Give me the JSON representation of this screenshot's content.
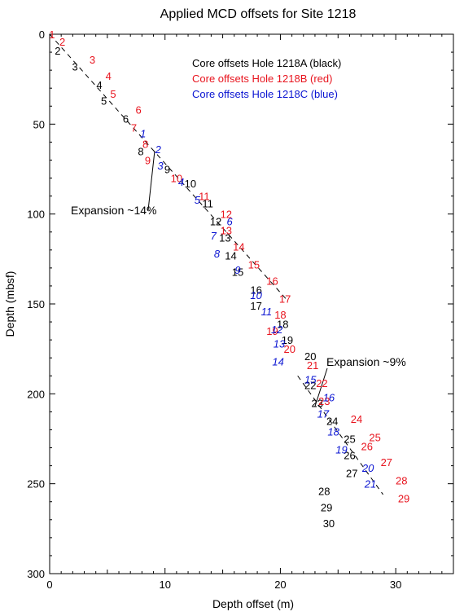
{
  "chart_data": {
    "type": "scatter",
    "title": "Applied MCD offsets for Site 1218",
    "xlabel": "Depth offset (m)",
    "ylabel": "Depth (mbsf)",
    "xlim": [
      0,
      35
    ],
    "ylim": [
      300,
      0
    ],
    "x_ticks": [
      0,
      10,
      20,
      30
    ],
    "y_ticks": [
      0,
      50,
      100,
      150,
      200,
      250,
      300
    ],
    "grid": false,
    "legend_position": "top-right",
    "legend": [
      {
        "text": "Core offsets Hole 1218A (black)",
        "color": "#000000"
      },
      {
        "text": "Core offsets Hole 1218B (red)",
        "color": "#e8141e"
      },
      {
        "text": "Core offsets Hole 1218C (blue)",
        "color": "#0a14d2"
      }
    ],
    "series": [
      {
        "hole": "1218A",
        "color": "#000000",
        "italic": false,
        "points": [
          {
            "label": "2",
            "x": 0.7,
            "y": 9
          },
          {
            "label": "3",
            "x": 2.2,
            "y": 18
          },
          {
            "label": "4",
            "x": 4.3,
            "y": 28
          },
          {
            "label": "5",
            "x": 4.7,
            "y": 37
          },
          {
            "label": "6",
            "x": 6.6,
            "y": 47
          },
          {
            "label": "8",
            "x": 7.9,
            "y": 65
          },
          {
            "label": "9",
            "x": 10.2,
            "y": 75
          },
          {
            "label": "10",
            "x": 12.2,
            "y": 83
          },
          {
            "label": "11",
            "x": 13.7,
            "y": 94
          },
          {
            "label": "12",
            "x": 14.4,
            "y": 104
          },
          {
            "label": "13",
            "x": 15.2,
            "y": 113
          },
          {
            "label": "14",
            "x": 15.7,
            "y": 123
          },
          {
            "label": "15",
            "x": 16.3,
            "y": 132
          },
          {
            "label": "16",
            "x": 17.9,
            "y": 142
          },
          {
            "label": "17",
            "x": 17.9,
            "y": 151
          },
          {
            "label": "18",
            "x": 20.2,
            "y": 161
          },
          {
            "label": "19",
            "x": 20.6,
            "y": 170
          },
          {
            "label": "20",
            "x": 22.6,
            "y": 179
          },
          {
            "label": "22",
            "x": 22.6,
            "y": 195
          },
          {
            "label": "23",
            "x": 23.2,
            "y": 205
          },
          {
            "label": "24",
            "x": 24.5,
            "y": 215
          },
          {
            "label": "25",
            "x": 26.0,
            "y": 225
          },
          {
            "label": "26",
            "x": 26.0,
            "y": 234
          },
          {
            "label": "27",
            "x": 26.2,
            "y": 244
          },
          {
            "label": "28",
            "x": 23.8,
            "y": 254
          },
          {
            "label": "29",
            "x": 24.0,
            "y": 263
          },
          {
            "label": "30",
            "x": 24.2,
            "y": 272
          }
        ]
      },
      {
        "hole": "1218B",
        "color": "#e8141e",
        "italic": false,
        "points": [
          {
            "label": "1",
            "x": 0.2,
            "y": 0
          },
          {
            "label": "2",
            "x": 1.1,
            "y": 4
          },
          {
            "label": "3",
            "x": 3.7,
            "y": 14
          },
          {
            "label": "4",
            "x": 5.1,
            "y": 23
          },
          {
            "label": "5",
            "x": 5.5,
            "y": 33
          },
          {
            "label": "6",
            "x": 7.7,
            "y": 42
          },
          {
            "label": "7",
            "x": 7.3,
            "y": 52
          },
          {
            "label": "8",
            "x": 8.3,
            "y": 61
          },
          {
            "label": "9",
            "x": 8.5,
            "y": 70
          },
          {
            "label": "10",
            "x": 11.0,
            "y": 80
          },
          {
            "label": "11",
            "x": 13.4,
            "y": 90
          },
          {
            "label": "12",
            "x": 15.3,
            "y": 100
          },
          {
            "label": "13",
            "x": 15.3,
            "y": 109
          },
          {
            "label": "14",
            "x": 16.4,
            "y": 118
          },
          {
            "label": "15",
            "x": 17.7,
            "y": 128
          },
          {
            "label": "16",
            "x": 19.3,
            "y": 137
          },
          {
            "label": "17",
            "x": 20.4,
            "y": 147
          },
          {
            "label": "18",
            "x": 20.0,
            "y": 156
          },
          {
            "label": "19",
            "x": 19.3,
            "y": 165
          },
          {
            "label": "20",
            "x": 20.8,
            "y": 175
          },
          {
            "label": "21",
            "x": 22.8,
            "y": 184
          },
          {
            "label": "22",
            "x": 23.6,
            "y": 194
          },
          {
            "label": "23",
            "x": 23.8,
            "y": 204
          },
          {
            "label": "24",
            "x": 26.6,
            "y": 214
          },
          {
            "label": "25",
            "x": 28.2,
            "y": 224
          },
          {
            "label": "26",
            "x": 27.5,
            "y": 229
          },
          {
            "label": "27",
            "x": 29.2,
            "y": 238
          },
          {
            "label": "28",
            "x": 30.5,
            "y": 248
          },
          {
            "label": "29",
            "x": 30.7,
            "y": 258
          }
        ]
      },
      {
        "hole": "1218C",
        "color": "#0a14d2",
        "italic": true,
        "points": [
          {
            "label": "1",
            "x": 8.1,
            "y": 55
          },
          {
            "label": "2",
            "x": 9.4,
            "y": 64
          },
          {
            "label": "3",
            "x": 9.6,
            "y": 73
          },
          {
            "label": "4",
            "x": 11.4,
            "y": 82
          },
          {
            "label": "5",
            "x": 12.8,
            "y": 92
          },
          {
            "label": "6",
            "x": 15.6,
            "y": 104
          },
          {
            "label": "7",
            "x": 14.2,
            "y": 112
          },
          {
            "label": "8",
            "x": 14.5,
            "y": 122
          },
          {
            "label": "9",
            "x": 16.3,
            "y": 131
          },
          {
            "label": "10",
            "x": 17.9,
            "y": 145
          },
          {
            "label": "11",
            "x": 18.8,
            "y": 154
          },
          {
            "label": "12",
            "x": 19.7,
            "y": 164
          },
          {
            "label": "13",
            "x": 19.9,
            "y": 172
          },
          {
            "label": "14",
            "x": 19.8,
            "y": 182
          },
          {
            "label": "15",
            "x": 22.6,
            "y": 192
          },
          {
            "label": "16",
            "x": 24.2,
            "y": 202
          },
          {
            "label": "17",
            "x": 23.7,
            "y": 211
          },
          {
            "label": "18",
            "x": 24.6,
            "y": 221
          },
          {
            "label": "19",
            "x": 25.3,
            "y": 231
          },
          {
            "label": "20",
            "x": 27.6,
            "y": 241
          },
          {
            "label": "21",
            "x": 27.8,
            "y": 250
          }
        ]
      }
    ],
    "trend_lines": [
      {
        "name": "Expansion ~14%",
        "from": [
          0,
          0
        ],
        "to": [
          20.6,
          148
        ]
      },
      {
        "name": "Expansion ~9%",
        "from": [
          21.5,
          190
        ],
        "to": [
          28.9,
          256
        ]
      }
    ],
    "annotations": [
      {
        "text": "Expansion ~14%",
        "x": 1.7,
        "y": 97,
        "arrow_to": [
          9.1,
          65
        ]
      },
      {
        "text": "Expansion ~9%",
        "x": 24.2,
        "y": 182,
        "arrow_to": [
          23.0,
          207
        ]
      }
    ]
  }
}
